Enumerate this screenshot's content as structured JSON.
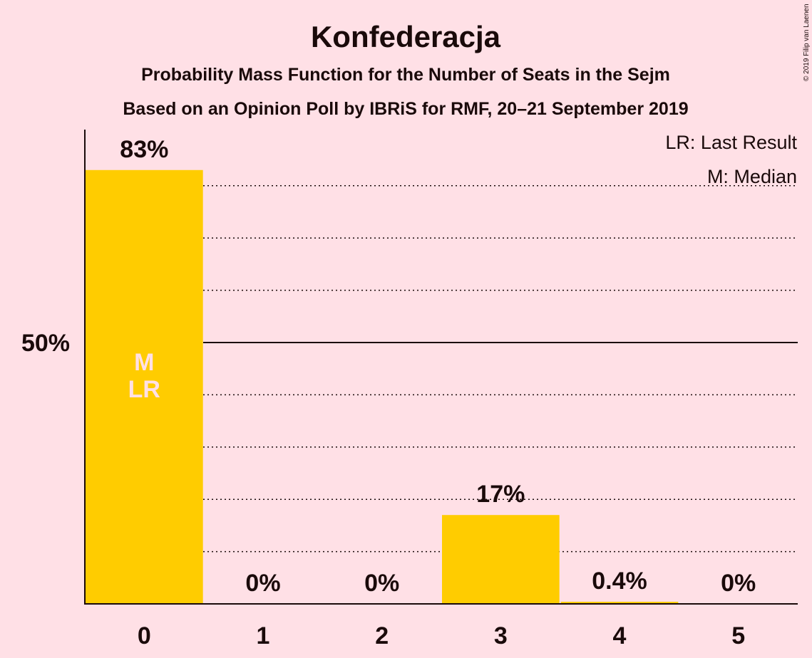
{
  "chart_data": {
    "type": "bar",
    "title": "Konfederacja",
    "subtitle": "Probability Mass Function for the Number of Seats in the Sejm",
    "subtitle2": "Based on an Opinion Poll by IBRiS for RMF, 20–21 September 2019",
    "categories": [
      "0",
      "1",
      "2",
      "3",
      "4",
      "5"
    ],
    "values": [
      83,
      0,
      0,
      17,
      0.4,
      0
    ],
    "value_labels": [
      "83%",
      "0%",
      "0%",
      "17%",
      "0.4%",
      "0%"
    ],
    "ylim": [
      0,
      90
    ],
    "y_ticks": [
      {
        "value": 50,
        "label": "50%"
      }
    ],
    "grid": "dotted every 10%",
    "median_bar": "0",
    "last_result_bar": "0",
    "bar_marker_lines": [
      "M",
      "LR"
    ],
    "legend": [
      "LR: Last Result",
      "M: Median"
    ],
    "legend_placement": "top-right",
    "copyright": "© 2019 Filip van Laenen"
  },
  "colors": {
    "background": "#ffe0e6",
    "bar": "#ffcc00",
    "text": "#1a0a0a",
    "marker_text": "#ffe0e6"
  }
}
